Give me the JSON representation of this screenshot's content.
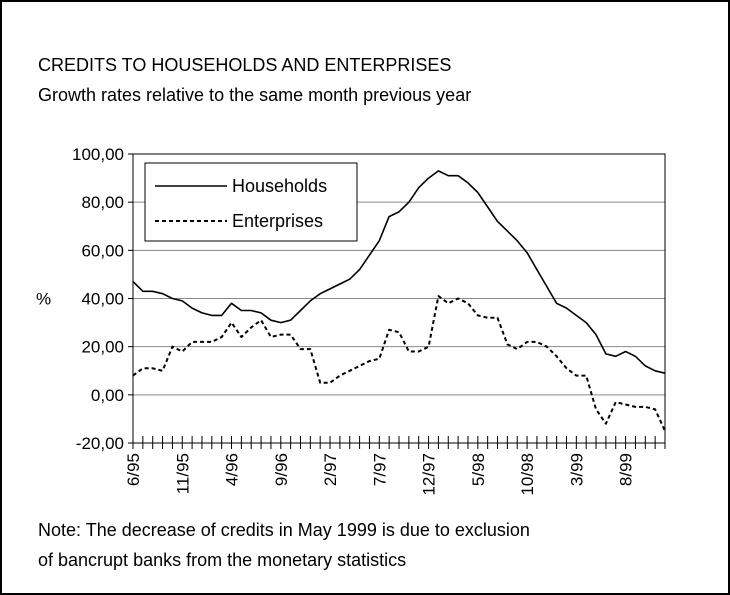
{
  "page": {
    "title": "CREDITS TO HOUSEHOLDS AND ENTERPRISES",
    "subtitle": "Growth rates relative to the same month previous year",
    "note_line1": "Note: The decrease of credits in May 1999 is due to exclusion",
    "note_line2": "of bancrupt banks from the monetary statistics"
  },
  "chart_data": {
    "type": "line",
    "title": "CREDITS TO HOUSEHOLDS AND ENTERPRISES",
    "subtitle": "Growth rates relative to the same month previous year",
    "ylabel": "%",
    "xlabel": "",
    "ylim": [
      -20,
      100
    ],
    "yticks": [
      "-20,00",
      "0,00",
      "20,00",
      "40,00",
      "60,00",
      "80,00",
      "100,00"
    ],
    "ytick_values": [
      -20,
      0,
      20,
      40,
      60,
      80,
      100
    ],
    "xtick_labels": [
      "6/95",
      "11/95",
      "4/96",
      "9/96",
      "2/97",
      "7/97",
      "12/97",
      "5/98",
      "10/98",
      "3/99",
      "8/99"
    ],
    "grid": "horizontal",
    "legend_position": "top-left",
    "months": [
      "6/95",
      "7/95",
      "8/95",
      "9/95",
      "10/95",
      "11/95",
      "12/95",
      "1/96",
      "2/96",
      "3/96",
      "4/96",
      "5/96",
      "6/96",
      "7/96",
      "8/96",
      "9/96",
      "10/96",
      "11/96",
      "12/96",
      "1/97",
      "2/97",
      "3/97",
      "4/97",
      "5/97",
      "6/97",
      "7/97",
      "8/97",
      "9/97",
      "10/97",
      "11/97",
      "12/97",
      "1/98",
      "2/98",
      "3/98",
      "4/98",
      "5/98",
      "6/98",
      "7/98",
      "8/98",
      "9/98",
      "10/98",
      "11/98",
      "12/98",
      "1/99",
      "2/99",
      "3/99",
      "4/99",
      "5/99",
      "6/99",
      "7/99",
      "8/99",
      "9/99",
      "10/99",
      "11/99",
      "12/99"
    ],
    "series": [
      {
        "name": "Households",
        "style": "solid",
        "values": [
          47,
          43,
          43,
          42,
          40,
          39,
          36,
          34,
          33,
          33,
          38,
          35,
          35,
          34,
          31,
          30,
          31,
          35,
          39,
          42,
          44,
          46,
          48,
          52,
          58,
          64,
          74,
          76,
          80,
          86,
          90,
          93,
          91,
          91,
          88,
          84,
          78,
          72,
          68,
          64,
          59,
          52,
          45,
          38,
          36,
          33,
          30,
          25,
          17,
          16,
          18,
          16,
          12,
          10,
          9
        ]
      },
      {
        "name": "Enterprises",
        "style": "dashed",
        "values": [
          8,
          11,
          11,
          10,
          20,
          18,
          22,
          22,
          22,
          24,
          30,
          24,
          28,
          31,
          24,
          25,
          25,
          19,
          19,
          5,
          5,
          8,
          10,
          12,
          14,
          15,
          27,
          26,
          18,
          18,
          20,
          41,
          38,
          40,
          38,
          33,
          32,
          32,
          21,
          19,
          22,
          22,
          20,
          16,
          11,
          8,
          8,
          -6,
          -12,
          -3,
          -4,
          -5,
          -5,
          -6,
          -15
        ]
      }
    ]
  }
}
